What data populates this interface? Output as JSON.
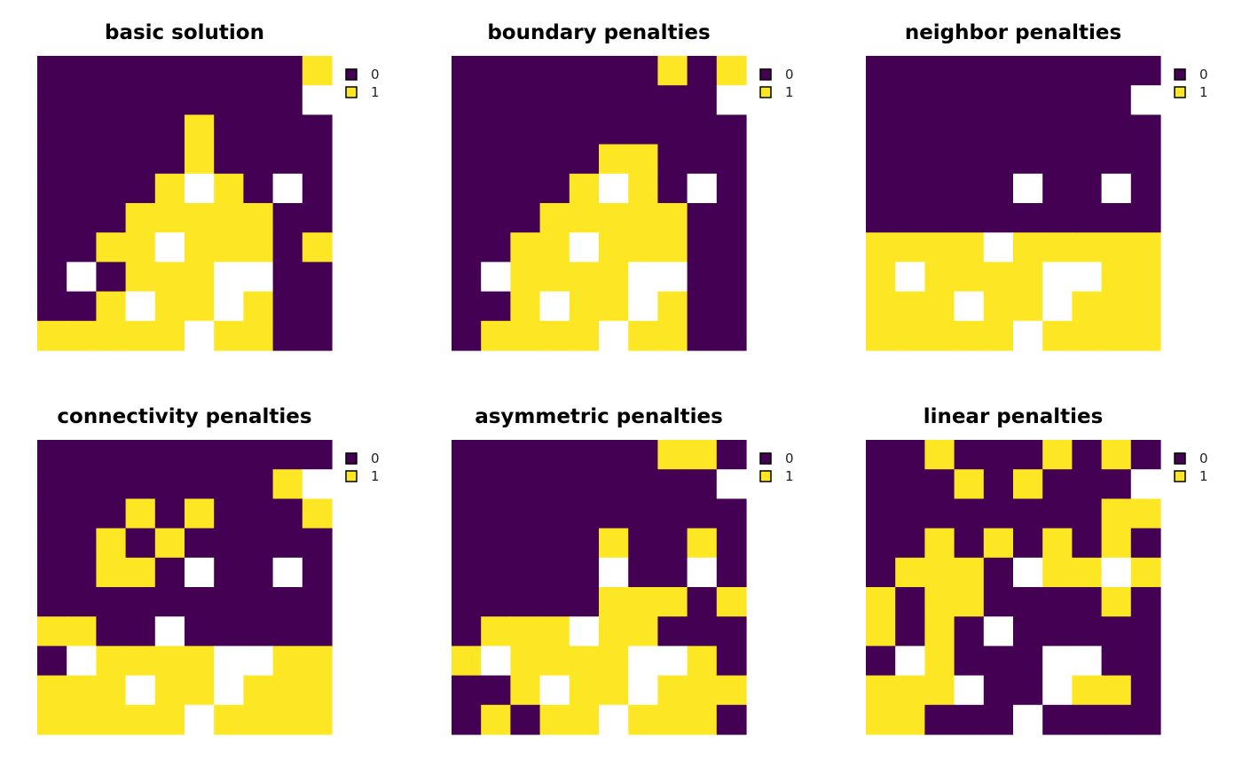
{
  "colors": {
    "0": "#440154",
    "1": "#FDE725",
    "missing": "#FFFFFF"
  },
  "chart_data": [
    {
      "type": "heatmap",
      "title": "basic solution",
      "legend": {
        "placement": "top-right",
        "entries": [
          "0",
          "1"
        ]
      },
      "grid": [
        [
          0,
          0,
          0,
          0,
          0,
          0,
          0,
          0,
          0,
          1
        ],
        [
          0,
          0,
          0,
          0,
          0,
          0,
          0,
          0,
          0,
          null
        ],
        [
          0,
          0,
          0,
          0,
          0,
          1,
          0,
          0,
          0,
          0
        ],
        [
          0,
          0,
          0,
          0,
          0,
          1,
          0,
          0,
          0,
          0
        ],
        [
          0,
          0,
          0,
          0,
          1,
          null,
          1,
          0,
          null,
          0
        ],
        [
          0,
          0,
          0,
          1,
          1,
          1,
          1,
          1,
          0,
          0
        ],
        [
          0,
          0,
          1,
          1,
          null,
          1,
          1,
          1,
          0,
          1
        ],
        [
          0,
          null,
          0,
          1,
          1,
          1,
          null,
          null,
          0,
          0
        ],
        [
          0,
          0,
          1,
          null,
          1,
          1,
          null,
          1,
          0,
          0
        ],
        [
          1,
          1,
          1,
          1,
          1,
          null,
          1,
          1,
          0,
          0
        ]
      ]
    },
    {
      "type": "heatmap",
      "title": "boundary penalties",
      "legend": {
        "placement": "top-right",
        "entries": [
          "0",
          "1"
        ]
      },
      "grid": [
        [
          0,
          0,
          0,
          0,
          0,
          0,
          0,
          1,
          0,
          1
        ],
        [
          0,
          0,
          0,
          0,
          0,
          0,
          0,
          0,
          0,
          null
        ],
        [
          0,
          0,
          0,
          0,
          0,
          0,
          0,
          0,
          0,
          0
        ],
        [
          0,
          0,
          0,
          0,
          0,
          1,
          1,
          0,
          0,
          0
        ],
        [
          0,
          0,
          0,
          0,
          1,
          null,
          1,
          0,
          null,
          0
        ],
        [
          0,
          0,
          0,
          1,
          1,
          1,
          1,
          1,
          0,
          0
        ],
        [
          0,
          0,
          1,
          1,
          null,
          1,
          1,
          1,
          0,
          0
        ],
        [
          0,
          null,
          1,
          1,
          1,
          1,
          null,
          null,
          0,
          0
        ],
        [
          0,
          0,
          1,
          null,
          1,
          1,
          null,
          1,
          0,
          0
        ],
        [
          0,
          1,
          1,
          1,
          1,
          null,
          1,
          1,
          0,
          0
        ]
      ]
    },
    {
      "type": "heatmap",
      "title": "neighbor penalties",
      "legend": {
        "placement": "top-right",
        "entries": [
          "0",
          "1"
        ]
      },
      "grid": [
        [
          0,
          0,
          0,
          0,
          0,
          0,
          0,
          0,
          0,
          0
        ],
        [
          0,
          0,
          0,
          0,
          0,
          0,
          0,
          0,
          0,
          null
        ],
        [
          0,
          0,
          0,
          0,
          0,
          0,
          0,
          0,
          0,
          0
        ],
        [
          0,
          0,
          0,
          0,
          0,
          0,
          0,
          0,
          0,
          0
        ],
        [
          0,
          0,
          0,
          0,
          0,
          null,
          0,
          0,
          null,
          0
        ],
        [
          0,
          0,
          0,
          0,
          0,
          0,
          0,
          0,
          0,
          0
        ],
        [
          1,
          1,
          1,
          1,
          null,
          1,
          1,
          1,
          1,
          1
        ],
        [
          1,
          null,
          1,
          1,
          1,
          1,
          null,
          null,
          1,
          1
        ],
        [
          1,
          1,
          1,
          null,
          1,
          1,
          null,
          1,
          1,
          1
        ],
        [
          1,
          1,
          1,
          1,
          1,
          null,
          1,
          1,
          1,
          1
        ]
      ]
    },
    {
      "type": "heatmap",
      "title": "connectivity penalties",
      "legend": {
        "placement": "top-right",
        "entries": [
          "0",
          "1"
        ]
      },
      "grid": [
        [
          0,
          0,
          0,
          0,
          0,
          0,
          0,
          0,
          0,
          0
        ],
        [
          0,
          0,
          0,
          0,
          0,
          0,
          0,
          0,
          1,
          null
        ],
        [
          0,
          0,
          0,
          1,
          0,
          1,
          0,
          0,
          0,
          1
        ],
        [
          0,
          0,
          1,
          0,
          1,
          0,
          0,
          0,
          0,
          0
        ],
        [
          0,
          0,
          1,
          1,
          0,
          null,
          0,
          0,
          null,
          0
        ],
        [
          0,
          0,
          0,
          0,
          0,
          0,
          0,
          0,
          0,
          0
        ],
        [
          1,
          1,
          0,
          0,
          null,
          0,
          0,
          0,
          0,
          0
        ],
        [
          0,
          null,
          1,
          1,
          1,
          1,
          null,
          null,
          1,
          1
        ],
        [
          1,
          1,
          1,
          null,
          1,
          1,
          null,
          1,
          1,
          1
        ],
        [
          1,
          1,
          1,
          1,
          1,
          null,
          1,
          1,
          1,
          1
        ]
      ]
    },
    {
      "type": "heatmap",
      "title": "asymmetric penalties",
      "legend": {
        "placement": "top-right",
        "entries": [
          "0",
          "1"
        ]
      },
      "grid": [
        [
          0,
          0,
          0,
          0,
          0,
          0,
          0,
          1,
          1,
          0
        ],
        [
          0,
          0,
          0,
          0,
          0,
          0,
          0,
          0,
          0,
          null
        ],
        [
          0,
          0,
          0,
          0,
          0,
          0,
          0,
          0,
          0,
          0
        ],
        [
          0,
          0,
          0,
          0,
          0,
          1,
          0,
          0,
          1,
          0
        ],
        [
          0,
          0,
          0,
          0,
          0,
          null,
          0,
          0,
          null,
          0
        ],
        [
          0,
          0,
          0,
          0,
          0,
          1,
          1,
          1,
          0,
          1
        ],
        [
          0,
          1,
          1,
          1,
          null,
          1,
          1,
          0,
          0,
          0
        ],
        [
          1,
          null,
          1,
          1,
          1,
          1,
          null,
          null,
          1,
          0
        ],
        [
          0,
          0,
          1,
          null,
          1,
          1,
          null,
          1,
          1,
          1
        ],
        [
          0,
          1,
          0,
          1,
          1,
          null,
          1,
          1,
          1,
          0
        ]
      ]
    },
    {
      "type": "heatmap",
      "title": "linear penalties",
      "legend": {
        "placement": "top-right",
        "entries": [
          "0",
          "1"
        ]
      },
      "grid": [
        [
          0,
          0,
          1,
          0,
          0,
          0,
          1,
          0,
          1,
          0
        ],
        [
          0,
          0,
          0,
          1,
          0,
          1,
          0,
          0,
          0,
          null
        ],
        [
          0,
          0,
          0,
          0,
          0,
          0,
          0,
          0,
          1,
          1
        ],
        [
          0,
          0,
          1,
          0,
          1,
          0,
          1,
          0,
          1,
          0
        ],
        [
          0,
          1,
          1,
          1,
          0,
          null,
          1,
          1,
          null,
          1
        ],
        [
          1,
          0,
          1,
          1,
          0,
          0,
          0,
          0,
          1,
          0
        ],
        [
          1,
          0,
          1,
          0,
          null,
          0,
          0,
          0,
          0,
          0
        ],
        [
          0,
          null,
          1,
          0,
          0,
          0,
          null,
          null,
          0,
          0
        ],
        [
          1,
          1,
          1,
          null,
          0,
          0,
          null,
          1,
          1,
          0
        ],
        [
          1,
          1,
          0,
          0,
          0,
          null,
          0,
          0,
          0,
          0
        ]
      ]
    }
  ]
}
